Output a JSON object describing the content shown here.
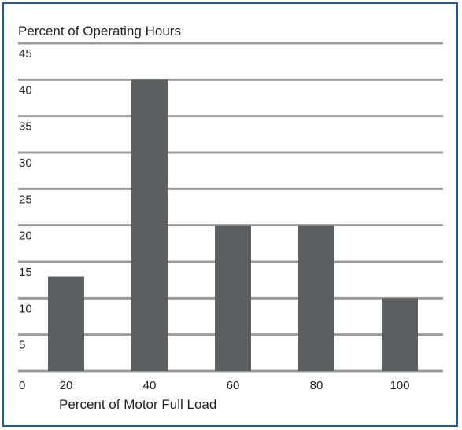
{
  "chart_data": {
    "type": "bar",
    "title": "",
    "ylabel": "Percent of Operating Hours",
    "xlabel": "Percent of Motor Full Load",
    "categories": [
      "20",
      "40",
      "60",
      "80",
      "100"
    ],
    "values": [
      13,
      40,
      20,
      20,
      10
    ],
    "ylim": [
      0,
      45
    ],
    "yticks": [
      "0",
      "5",
      "10",
      "15",
      "20",
      "25",
      "30",
      "35",
      "40",
      "45"
    ],
    "grid": true,
    "bar_color": "#5d5f61",
    "grid_color": "#9b9b9b",
    "frame_color": "#1e5a9c"
  }
}
